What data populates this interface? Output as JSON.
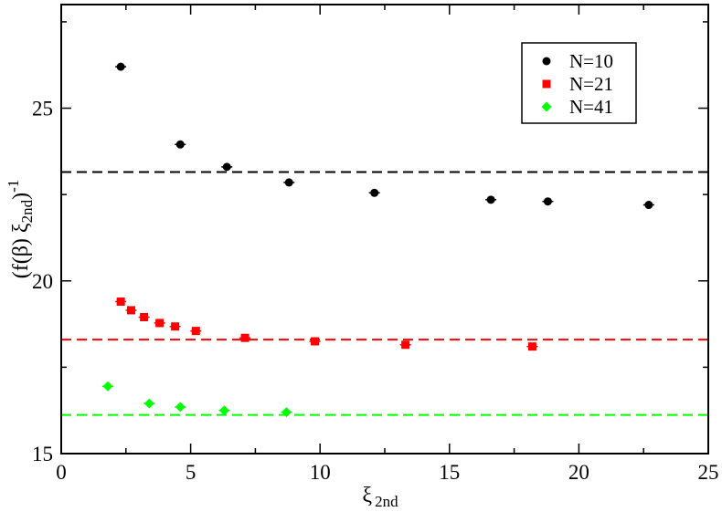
{
  "chart_data": {
    "type": "scatter",
    "xlabel": {
      "base": "ξ",
      "sub": "2nd"
    },
    "ylabel": {
      "prefix": "(f(β) ξ",
      "sub": "2nd",
      "suffix": ")",
      "sup": "-1"
    },
    "xlim": [
      0,
      25
    ],
    "ylim": [
      15,
      28
    ],
    "xticks": [
      0,
      5,
      10,
      15,
      20,
      25
    ],
    "yticks": [
      15,
      20,
      25
    ],
    "xminor_step": 2.5,
    "yminor_step": 2.5,
    "grid": false,
    "legend_position": "top-right",
    "series": [
      {
        "name": "N=10",
        "color": "#000000",
        "marker": "circle",
        "x": [
          2.3,
          4.6,
          6.4,
          8.8,
          12.1,
          16.6,
          18.8,
          22.7
        ],
        "y": [
          26.2,
          23.95,
          23.3,
          22.85,
          22.55,
          22.35,
          22.3,
          22.2
        ],
        "reference_line": 23.15
      },
      {
        "name": "N=21",
        "color": "#ff0000",
        "marker": "square",
        "x": [
          2.3,
          2.7,
          3.2,
          3.8,
          4.4,
          5.2,
          7.1,
          9.8,
          13.3,
          18.2
        ],
        "y": [
          19.4,
          19.15,
          18.95,
          18.78,
          18.68,
          18.55,
          18.35,
          18.25,
          18.15,
          18.1
        ],
        "reference_line": 18.3
      },
      {
        "name": "N=41",
        "color": "#00ff00",
        "marker": "diamond",
        "x": [
          1.8,
          3.4,
          4.6,
          6.3,
          8.7
        ],
        "y": [
          16.95,
          16.45,
          16.35,
          16.25,
          16.2
        ],
        "reference_line": 16.12
      }
    ]
  }
}
